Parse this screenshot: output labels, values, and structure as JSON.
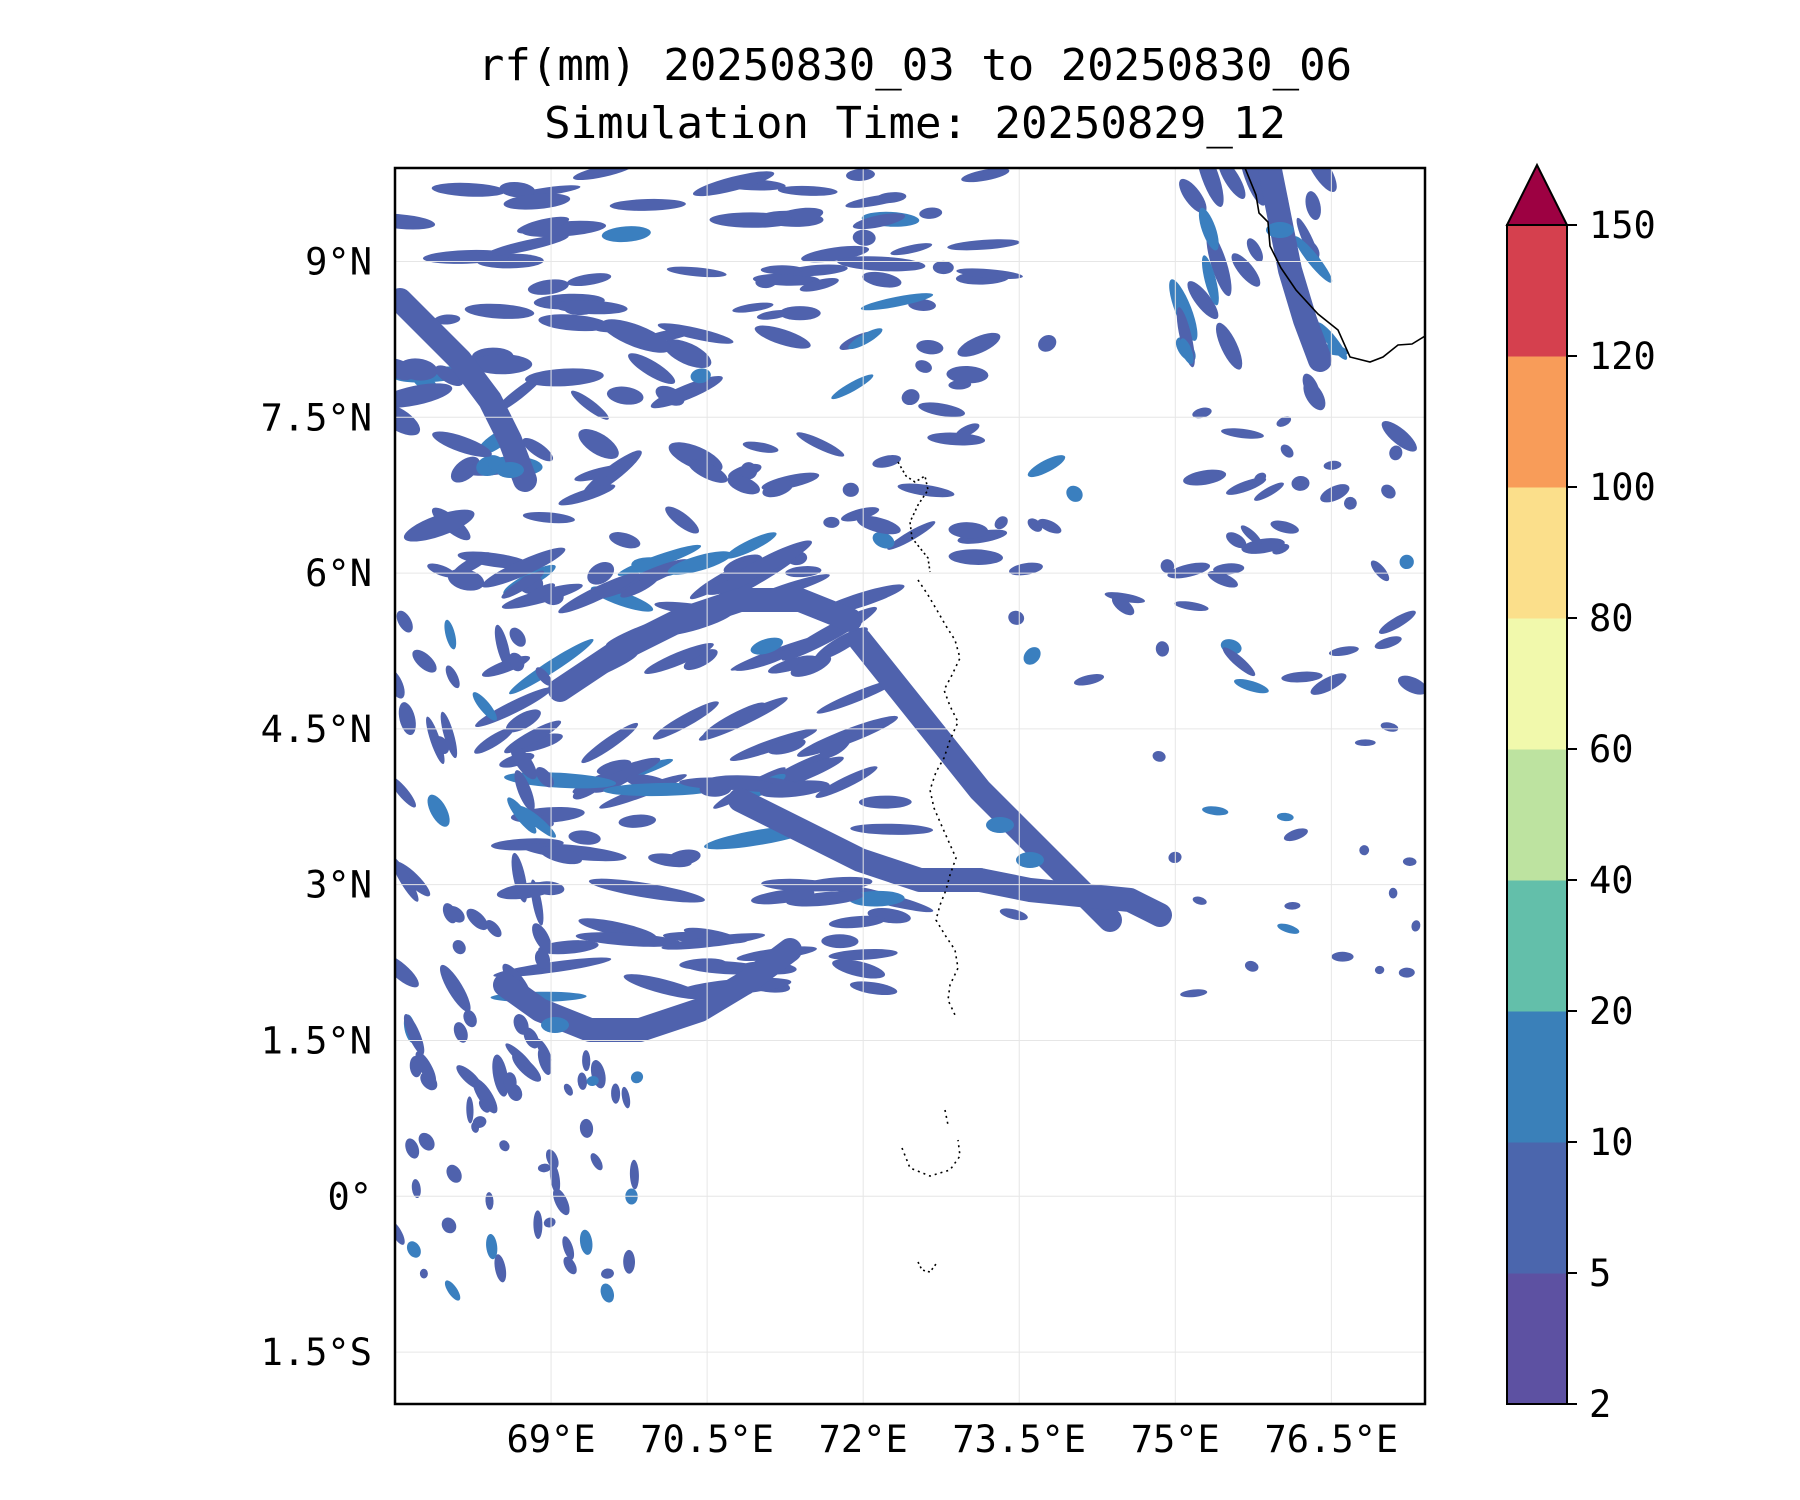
{
  "title_line1": "rf(mm) 20250830_03 to 20250830_06",
  "title_line2": "Simulation Time: 20250829_12",
  "map": {
    "lon_range": [
      67.5,
      77.4
    ],
    "lat_range": [
      -2.0,
      9.9
    ],
    "x_ticks": [
      {
        "value": 69,
        "label": "69°E"
      },
      {
        "value": 70.5,
        "label": "70.5°E"
      },
      {
        "value": 72,
        "label": "72°E"
      },
      {
        "value": 73.5,
        "label": "73.5°E"
      },
      {
        "value": 75,
        "label": "75°E"
      },
      {
        "value": 76.5,
        "label": "76.5°E"
      }
    ],
    "y_ticks": [
      {
        "value": 9,
        "label": "9°N"
      },
      {
        "value": 7.5,
        "label": "7.5°N"
      },
      {
        "value": 6,
        "label": "6°N"
      },
      {
        "value": 4.5,
        "label": "4.5°N"
      },
      {
        "value": 3,
        "label": "3°N"
      },
      {
        "value": 1.5,
        "label": "1.5°N"
      },
      {
        "value": 0,
        "label": "0°"
      },
      {
        "value": -1.5,
        "label": "1.5°S"
      }
    ],
    "gridlines": true,
    "rain_color_dominant": "#4f62ad",
    "rain_color_secondary": "#3a7fbf"
  },
  "colorbar": {
    "levels": [
      "2",
      "5",
      "10",
      "20",
      "40",
      "60",
      "80",
      "100",
      "120",
      "150"
    ],
    "colors": [
      "#5d51a2",
      "#4b66ad",
      "#3a80b9",
      "#63bfaa",
      "#bde3a0",
      "#f1f9ac",
      "#fbdf8b",
      "#f89c59",
      "#d5404e"
    ],
    "extend_color": "#9d0142",
    "extend": "max"
  }
}
